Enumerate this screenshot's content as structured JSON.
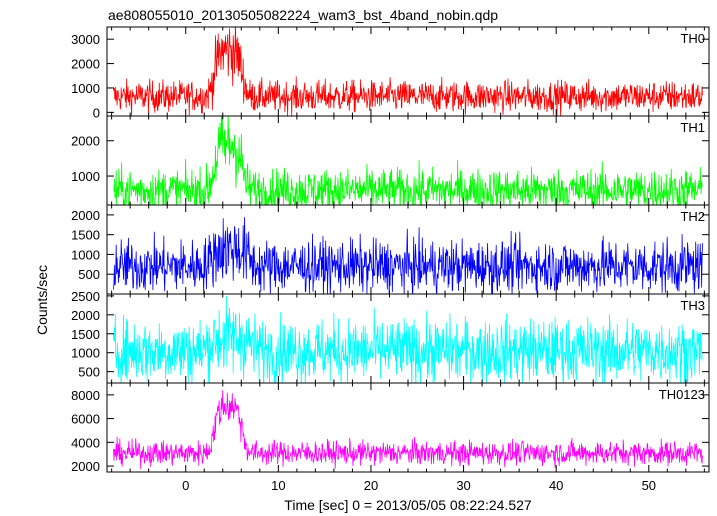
{
  "chart_data": {
    "type": "line",
    "title": "ae808055010_20130505082224_wam3_bst_4band_nobin.qdp",
    "xlabel": "Time [sec] 0 = 2013/05/05 08:22:24.527",
    "ylabel": "Counts/sec",
    "xlim": [
      -8.5,
      56.5
    ],
    "xticks": [
      0,
      10,
      20,
      30,
      40,
      50
    ],
    "x_start": -7.8,
    "x_end": 55.8,
    "n_points": 1300,
    "grid": false,
    "panels": [
      {
        "name": "TH0",
        "color": "#ff0000",
        "ylim": [
          -150,
          3500
        ],
        "yticks": [
          0,
          1000,
          2000,
          3000
        ],
        "baseline": 650,
        "noise": 320,
        "peak": {
          "time": 4.6,
          "amplitude": 1900,
          "width": 1.4
        }
      },
      {
        "name": "TH1",
        "color": "#00ff00",
        "ylim": [
          180,
          2700
        ],
        "yticks": [
          1000,
          2000
        ],
        "baseline": 600,
        "noise": 300,
        "peak": {
          "time": 4.6,
          "amplitude": 1300,
          "width": 1.4
        }
      },
      {
        "name": "TH2",
        "color": "#0000ff",
        "ylim": [
          0,
          2250
        ],
        "yticks": [
          500,
          1000,
          1500,
          2000
        ],
        "baseline": 700,
        "noise": 330,
        "peak": {
          "time": 4.8,
          "amplitude": 450,
          "width": 1.8
        }
      },
      {
        "name": "TH3",
        "color": "#00ffff",
        "ylim": [
          200,
          2550
        ],
        "yticks": [
          500,
          1000,
          1500,
          2000,
          2500
        ],
        "baseline": 1050,
        "noise": 420,
        "peak": {
          "time": 4.8,
          "amplitude": 350,
          "width": 2.0
        }
      },
      {
        "name": "TH0123",
        "color": "#ff00ff",
        "ylim": [
          1500,
          9000
        ],
        "yticks": [
          2000,
          4000,
          6000,
          8000
        ],
        "baseline": 3100,
        "noise": 500,
        "peak": {
          "time": 4.6,
          "amplitude": 4000,
          "width": 1.4
        }
      }
    ]
  }
}
